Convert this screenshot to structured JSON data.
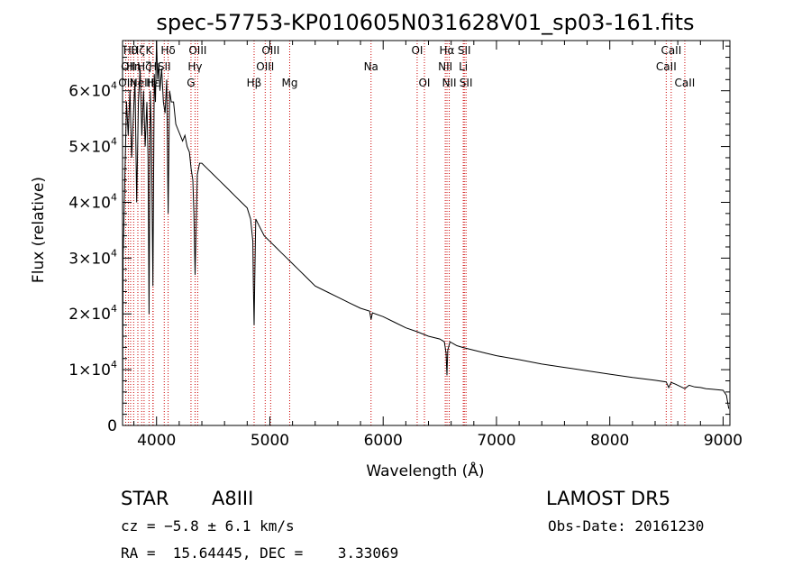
{
  "chart_data": {
    "type": "line",
    "title": "spec-57753-KP010605N031628V01_sp03-161.fits",
    "xlabel": "Wavelength (Å)",
    "ylabel": "Flux (relative)",
    "xlim": [
      3700,
      9060
    ],
    "ylim": [
      0,
      69000
    ],
    "x_ticks": [
      {
        "value": 4000,
        "label": "4000"
      },
      {
        "value": 5000,
        "label": "5000"
      },
      {
        "value": 6000,
        "label": "6000"
      },
      {
        "value": 7000,
        "label": "7000"
      },
      {
        "value": 8000,
        "label": "8000"
      },
      {
        "value": 9000,
        "label": "9000"
      }
    ],
    "y_ticks": [
      {
        "value": 0,
        "mantissa": "0",
        "exponent": ""
      },
      {
        "value": 10000,
        "mantissa": "1×10",
        "exponent": "4"
      },
      {
        "value": 20000,
        "mantissa": "2×10",
        "exponent": "4"
      },
      {
        "value": 30000,
        "mantissa": "3×10",
        "exponent": "4"
      },
      {
        "value": 40000,
        "mantissa": "4×10",
        "exponent": "4"
      },
      {
        "value": 50000,
        "mantissa": "5×10",
        "exponent": "4"
      },
      {
        "value": 60000,
        "mantissa": "6×10",
        "exponent": "4"
      }
    ],
    "series": [
      {
        "color": "#000000",
        "x": [
          3700,
          3705,
          3720,
          3735,
          3750,
          3765,
          3780,
          3795,
          3810,
          3825,
          3840,
          3855,
          3870,
          3885,
          3900,
          3915,
          3925,
          3934,
          3945,
          3955,
          3968,
          3980,
          3990,
          4000,
          4010,
          4020,
          4030,
          4045,
          4060,
          4075,
          4090,
          4102,
          4115,
          4130,
          4150,
          4170,
          4190,
          4210,
          4230,
          4250,
          4270,
          4290,
          4305,
          4320,
          4330,
          4340,
          4350,
          4360,
          4380,
          4400,
          4450,
          4500,
          4550,
          4600,
          4650,
          4700,
          4750,
          4800,
          4830,
          4850,
          4855,
          4861,
          4867,
          4875,
          4900,
          4950,
          5000,
          5050,
          5100,
          5150,
          5200,
          5250,
          5300,
          5400,
          5500,
          5600,
          5700,
          5800,
          5880,
          5893,
          5905,
          6000,
          6100,
          6200,
          6300,
          6400,
          6500,
          6540,
          6555,
          6563,
          6570,
          6590,
          6650,
          6700,
          6800,
          6900,
          7000,
          7200,
          7400,
          7600,
          7800,
          8000,
          8200,
          8400,
          8498,
          8520,
          8542,
          8580,
          8662,
          8700,
          8750,
          8800,
          8850,
          8900,
          8950,
          9000,
          9030,
          9050
        ],
        "y": [
          0,
          30000,
          44000,
          58000,
          52000,
          60000,
          48000,
          55000,
          62000,
          40000,
          58000,
          64000,
          52000,
          60000,
          50000,
          58000,
          48000,
          20000,
          60000,
          52000,
          25000,
          63000,
          58000,
          70000,
          62000,
          65000,
          60000,
          64000,
          58000,
          56000,
          62000,
          38000,
          60000,
          58000,
          58000,
          54000,
          53000,
          52000,
          51000,
          52000,
          50000,
          49000,
          46000,
          44000,
          38000,
          27000,
          36000,
          45000,
          47000,
          47000,
          46000,
          45000,
          44000,
          43000,
          42000,
          41000,
          40000,
          39000,
          37000,
          33000,
          25000,
          18000,
          26000,
          37000,
          36000,
          34000,
          33000,
          32000,
          31000,
          30000,
          29000,
          28000,
          27000,
          25000,
          24000,
          23000,
          22000,
          21000,
          20500,
          19000,
          20200,
          19500,
          18500,
          17500,
          16800,
          16000,
          15500,
          15000,
          13000,
          9000,
          13500,
          15000,
          14300,
          14000,
          13500,
          13000,
          12500,
          11800,
          11000,
          10400,
          9800,
          9200,
          8600,
          8100,
          7800,
          6800,
          7700,
          7400,
          6600,
          7200,
          6900,
          6800,
          6600,
          6500,
          6400,
          6300,
          5400,
          3000
        ]
      }
    ],
    "line_markers": [
      {
        "w": 3728,
        "label": "OII",
        "row": 2
      },
      {
        "w": 3751,
        "label": "OII",
        "row": 1
      },
      {
        "w": 3771,
        "label": "Hθ",
        "row": 0
      },
      {
        "w": 3798,
        "label": "Hη",
        "row": 1
      },
      {
        "w": 3835,
        "label": "Hζ",
        "row": 0
      },
      {
        "w": 3869,
        "label": "NeIII",
        "row": 2
      },
      {
        "w": 3890,
        "label": "Hζ",
        "row": 1
      },
      {
        "w": 3934,
        "label": "K",
        "row": 0
      },
      {
        "w": 3968,
        "label": "H",
        "row": 1
      },
      {
        "w": 3970,
        "label": "Hε",
        "row": 2
      },
      {
        "w": 4068,
        "label": "SII",
        "row": 1
      },
      {
        "w": 4102,
        "label": "Hδ",
        "row": 0
      },
      {
        "w": 4304,
        "label": "G",
        "row": 2
      },
      {
        "w": 4340,
        "label": "Hγ",
        "row": 1
      },
      {
        "w": 4363,
        "label": "OIII",
        "row": 0
      },
      {
        "w": 4861,
        "label": "Hβ",
        "row": 2
      },
      {
        "w": 4959,
        "label": "OIII",
        "row": 1
      },
      {
        "w": 5007,
        "label": "OIII",
        "row": 0
      },
      {
        "w": 5175,
        "label": "Mg",
        "row": 2
      },
      {
        "w": 5893,
        "label": "Na",
        "row": 1
      },
      {
        "w": 6300,
        "label": "OI",
        "row": 0
      },
      {
        "w": 6364,
        "label": "OI",
        "row": 2
      },
      {
        "w": 6548,
        "label": "NII",
        "row": 1
      },
      {
        "w": 6563,
        "label": "Hα",
        "row": 0
      },
      {
        "w": 6583,
        "label": "NII",
        "row": 2
      },
      {
        "w": 6707,
        "label": "Li",
        "row": 1
      },
      {
        "w": 6716,
        "label": "SII",
        "row": 0
      },
      {
        "w": 6731,
        "label": "SII",
        "row": 2
      },
      {
        "w": 8498,
        "label": "CaII",
        "row": 1
      },
      {
        "w": 8542,
        "label": "CaII",
        "row": 0
      },
      {
        "w": 8662,
        "label": "CaII",
        "row": 2
      }
    ],
    "marker_color": "#cc0000",
    "grid": false
  },
  "info": {
    "object_class": "STAR",
    "subclass": "A8III",
    "survey": "LAMOST DR5",
    "cz_text": "cz = −5.8 ± 6.1 km/s",
    "obs_date": "Obs-Date: 20161230",
    "coords": "RA =  15.64445, DEC =    3.33069"
  }
}
